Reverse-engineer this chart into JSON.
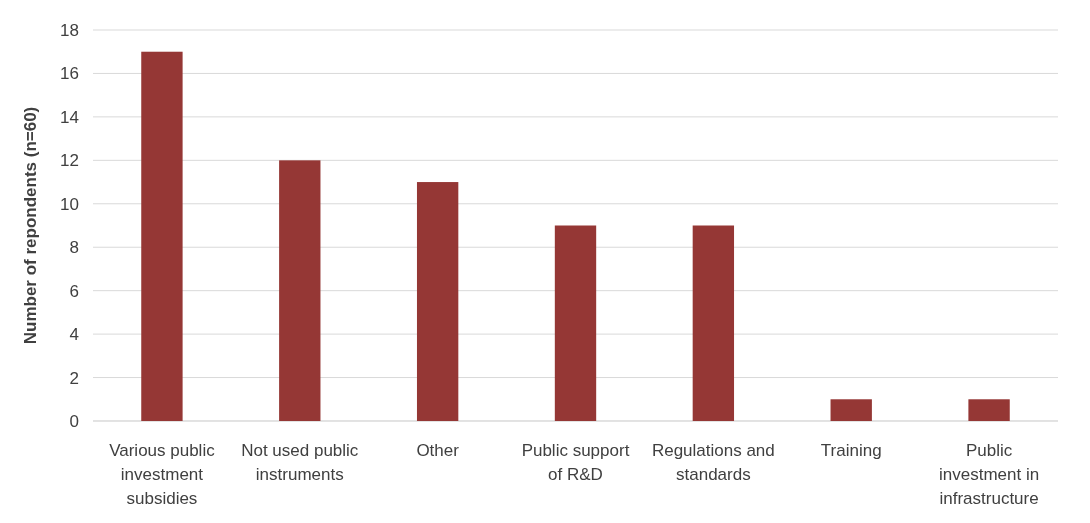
{
  "chart_data": {
    "type": "bar",
    "ylabel": "Number of repondents (n=60)",
    "categories": [
      "Various public investment subsidies",
      "Not used public instruments",
      "Other",
      "Public support of R&D",
      "Regulations and standards",
      "Training",
      "Public investment in infrastructure"
    ],
    "values": [
      17,
      12,
      11,
      9,
      9,
      1,
      1
    ],
    "color": "#953735",
    "ylim": [
      0,
      18
    ],
    "yticks": [
      0,
      2,
      4,
      6,
      8,
      10,
      12,
      14,
      16,
      18
    ],
    "grid": "y"
  }
}
